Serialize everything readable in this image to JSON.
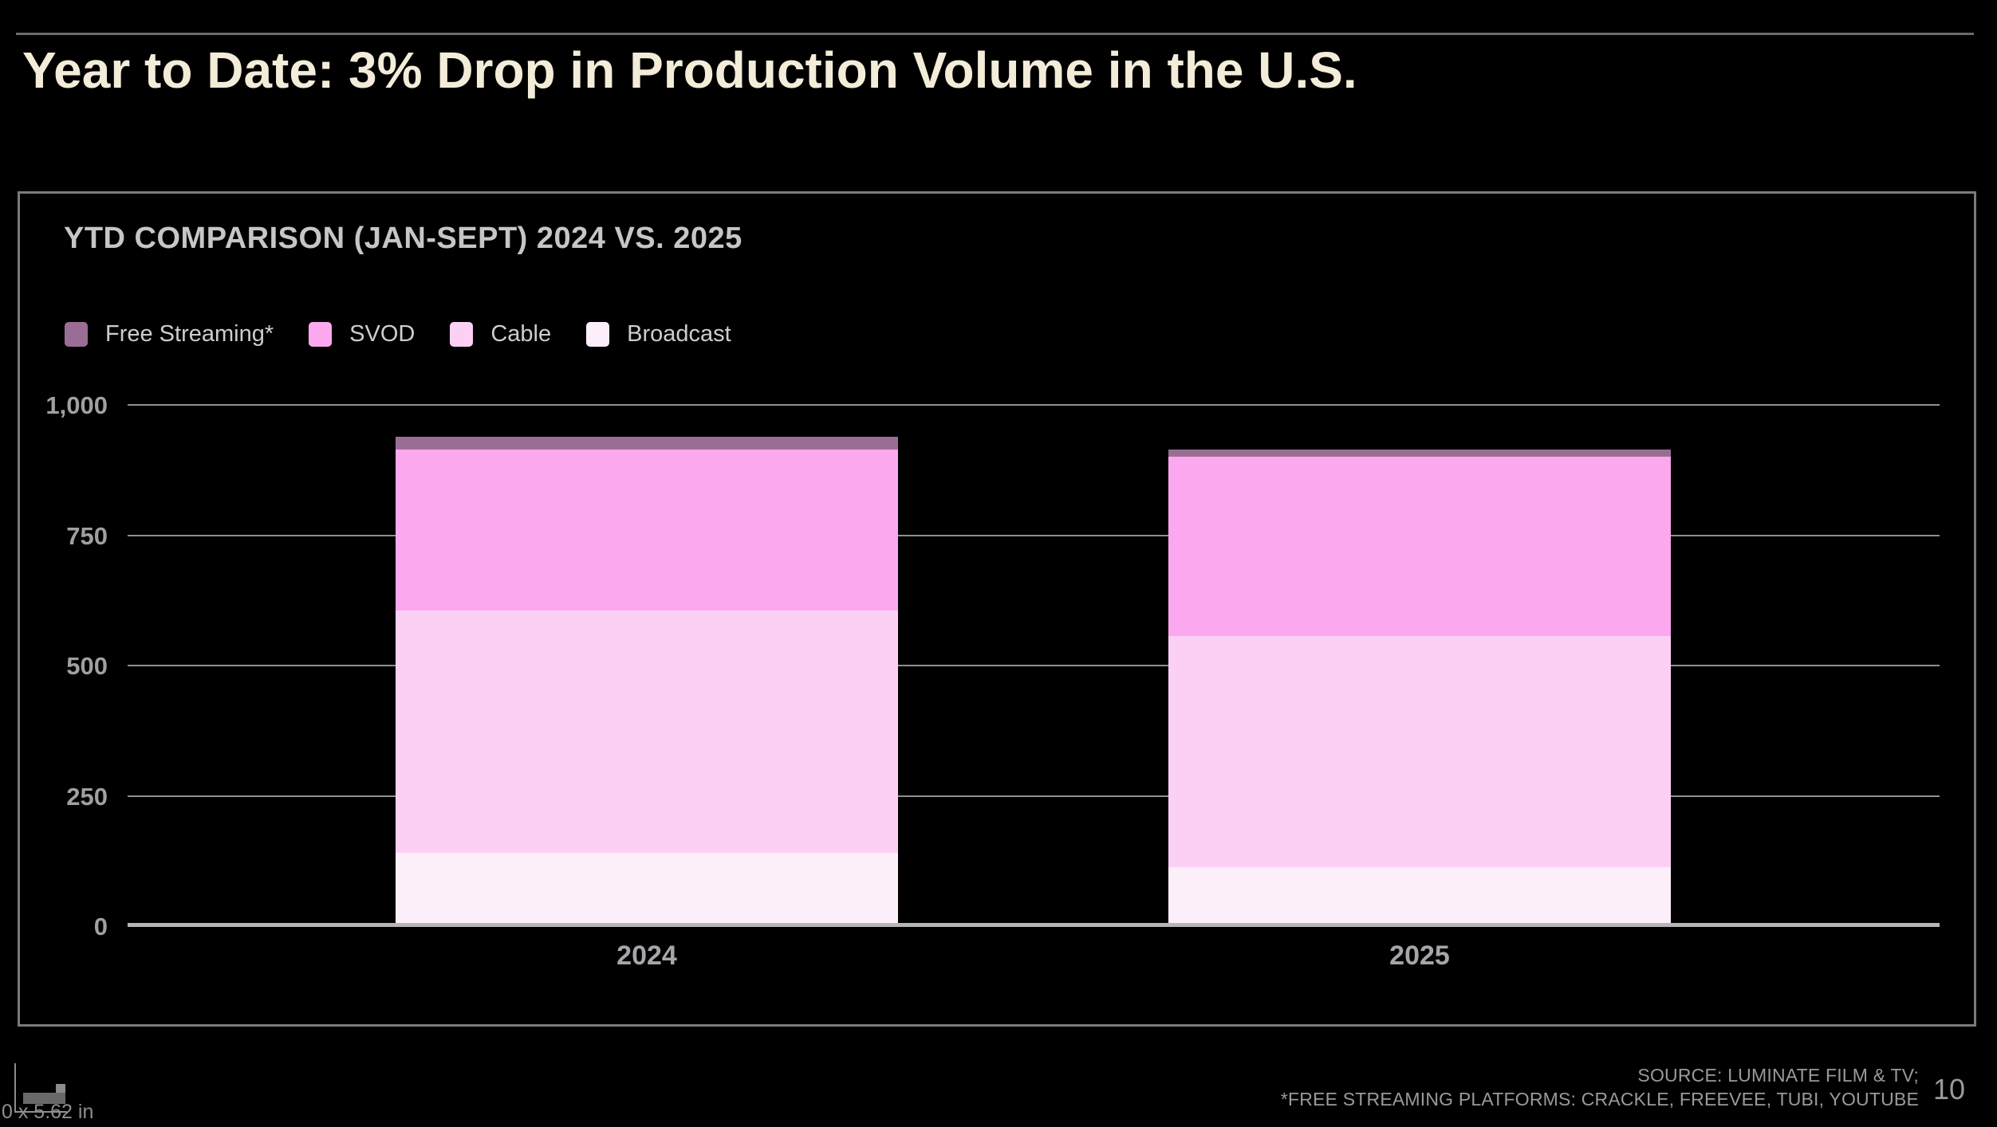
{
  "slide": {
    "title": "Year to Date: 3% Drop in Production Volume in the U.S.",
    "page_number": "10",
    "source_line1": "SOURCE: LUMINATE FILM & TV;",
    "source_line2": "*FREE STREAMING PLATFORMS: CRACKLE, FREEVEE, TUBI, YOUTUBE",
    "resize_artifact_text": "0 x 5.62 in"
  },
  "chart": {
    "title": "YTD COMPARISON (JAN-SEPT) 2024 VS. 2025",
    "legend": [
      {
        "label": "Free Streaming*",
        "color": "#9a6e94"
      },
      {
        "label": "SVOD",
        "color": "#fba8ef"
      },
      {
        "label": "Cable",
        "color": "#fcd0f5"
      },
      {
        "label": "Broadcast",
        "color": "#fdeffa"
      }
    ]
  },
  "chart_data": {
    "type": "bar",
    "stacked": true,
    "title": "YTD COMPARISON (JAN-SEPT) 2024 VS. 2025",
    "categories": [
      "2024",
      "2025"
    ],
    "series": [
      {
        "name": "Broadcast",
        "color": "#fdeffa",
        "values": [
          141,
          113
        ]
      },
      {
        "name": "Cable",
        "color": "#fcd0f5",
        "values": [
          464,
          443
        ]
      },
      {
        "name": "SVOD",
        "color": "#fba8ef",
        "values": [
          310,
          345
        ]
      },
      {
        "name": "Free Streaming*",
        "color": "#9a6e94",
        "values": [
          24,
          14
        ]
      }
    ],
    "totals": [
      939,
      915
    ],
    "xlabel": "",
    "ylabel": "",
    "ylim": [
      0,
      1000
    ],
    "yticks": [
      0,
      250,
      500,
      750,
      1000
    ],
    "ytick_labels": [
      "0",
      "250",
      "500",
      "750",
      "1,000"
    ],
    "legend_position": "top-left",
    "legend_order": [
      "Free Streaming*",
      "SVOD",
      "Cable",
      "Broadcast"
    ],
    "grid": "horizontal",
    "background": "#000000"
  },
  "colors": {
    "slide_background": "#000000",
    "title_text": "#f3ecd9",
    "panel_border": "#7b7b7b",
    "gridline": "#8f8f8f",
    "baseline": "#b6b6b6",
    "axis_text": "#a0a0a0",
    "footer_text": "#9a9a9a"
  }
}
